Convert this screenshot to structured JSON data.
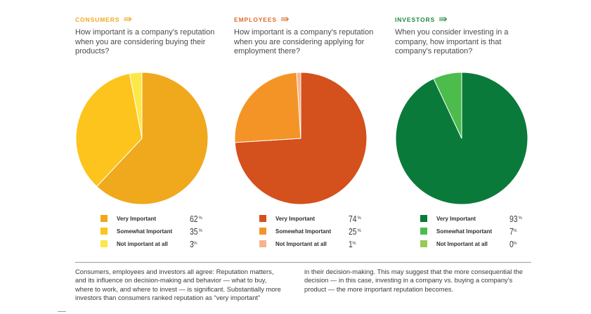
{
  "colors": {
    "consumers_tag": "#f5a81c",
    "employees_tag": "#e06a2a",
    "investors_tag": "#23863f",
    "consumers": [
      "#f0a81c",
      "#fcc41c",
      "#fce849"
    ],
    "employees": [
      "#d4501d",
      "#f49427",
      "#f7b48c"
    ],
    "investors": [
      "#0a7a3a",
      "#4cbc4d",
      "#9ac854"
    ]
  },
  "icons": {
    "tag_arrow": "double-arrow-right-icon"
  },
  "chart_data": [
    {
      "type": "pie",
      "tag": "CONSUMERS",
      "title": "How important is a company's reputation when you are considering buying their products?",
      "labels": [
        "Very Important",
        "Somewhat Important",
        "Not important at all"
      ],
      "values": [
        62,
        35,
        3
      ],
      "display_values": [
        "62",
        "35",
        "3"
      ],
      "unit": "%"
    },
    {
      "type": "pie",
      "tag": "EMPLOYEES",
      "title": "How important is a company's reputation when you are considering applying for employment there?",
      "labels": [
        "Very Important",
        "Somewhat Important",
        "Not Important at all"
      ],
      "values": [
        74,
        25,
        1
      ],
      "display_values": [
        "74",
        "25",
        "1"
      ],
      "unit": "%"
    },
    {
      "type": "pie",
      "tag": "INVESTORS",
      "title": "When you consider investing in a company, how important is that company's reputation?",
      "labels": [
        "Very Important",
        "Somewhat Important",
        "Not Important at all"
      ],
      "values": [
        93,
        7,
        0
      ],
      "display_values": [
        "93",
        "7",
        "0"
      ],
      "unit": "%"
    }
  ],
  "footer": {
    "left": "Consumers, employees and investors all agree: Reputation matters, and its influence on decision-making and behavior — what to buy, where to work, and where to invest — is significant. Substantially more investors than consumers ranked reputation as “very important”",
    "right": "in their decision-making. This may suggest that the more consequential the decision — in this case, investing in a company vs. buying a company's product — the more important reputation becomes."
  }
}
